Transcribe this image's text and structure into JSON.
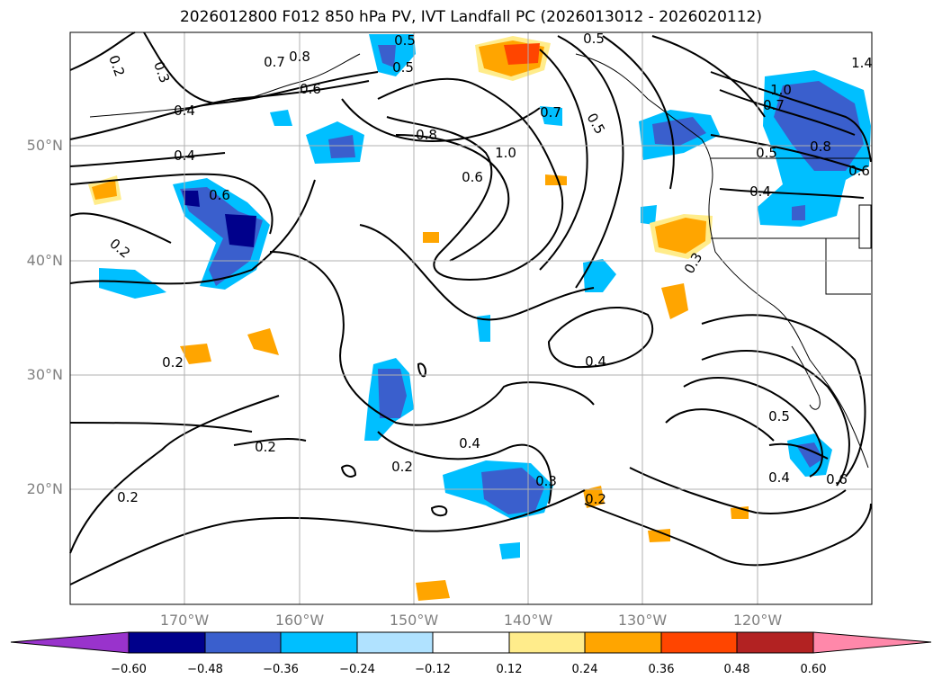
{
  "title": "2026012800 F012 850 hPa PV, IVT Landfall PC (2026013012 - 2026020112)",
  "map": {
    "lon_labels": [
      "170°W",
      "160°W",
      "150°W",
      "140°W",
      "130°W",
      "120°W"
    ],
    "lat_labels": [
      "50°N",
      "40°N",
      "30°N",
      "20°N"
    ],
    "contour_labels": [
      "0.2",
      "0.3",
      "0.8",
      "0.7",
      "0.4",
      "0.6",
      "0.5",
      "0.4",
      "0.5",
      "0.6",
      "0.2",
      "1.0",
      "0.6",
      "0.8",
      "0.7",
      "0.5",
      "1.0",
      "0.7",
      "0.5",
      "0.8",
      "0.6",
      "0.4",
      "0.3",
      "0.2",
      "0.4",
      "0.2",
      "0.4",
      "0.2",
      "0.2",
      "0.3",
      "0.2",
      "0.5",
      "0.4",
      "0.6",
      "0.5",
      "1.4"
    ]
  },
  "colorbar": {
    "tick_labels": [
      "−0.60",
      "−0.48",
      "−0.36",
      "−0.24",
      "−0.12",
      "0.12",
      "0.24",
      "0.36",
      "0.48",
      "0.60"
    ],
    "colors": [
      "#9933cc",
      "#00008b",
      "#3a5fcd",
      "#00bfff",
      "#b0e2ff",
      "#ffffff",
      "#ffec8b",
      "#ffa500",
      "#ff4500",
      "#b22222",
      "#ff88aa",
      "#ff88aa"
    ]
  }
}
